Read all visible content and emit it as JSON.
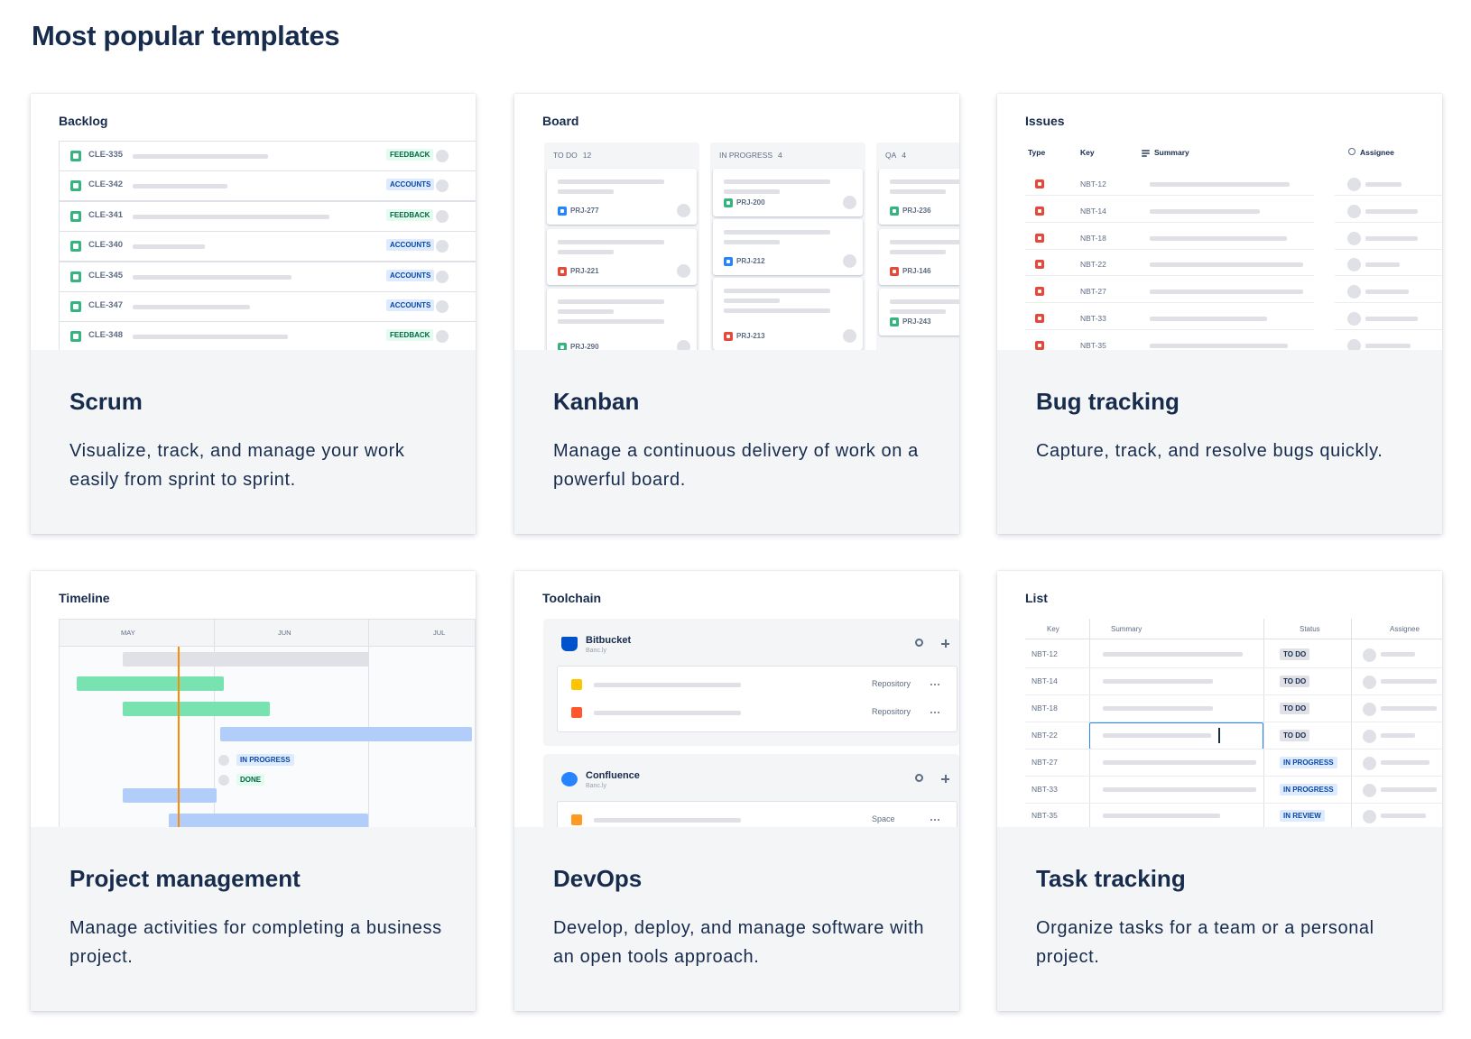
{
  "title": "Most popular templates",
  "templates": [
    {
      "name": "Scrum",
      "description": "Visualize, track, and manage your work easily from sprint to sprint.",
      "preview": {
        "heading": "Backlog",
        "rows": [
          {
            "key": "CLE-335",
            "label": "FEEDBACK"
          },
          {
            "key": "CLE-342",
            "label": "ACCOUNTS"
          },
          {
            "key": "CLE-341",
            "label": "FEEDBACK"
          },
          {
            "key": "CLE-340",
            "label": "ACCOUNTS"
          },
          {
            "key": "CLE-345",
            "label": "ACCOUNTS"
          },
          {
            "key": "CLE-347",
            "label": "ACCOUNTS"
          },
          {
            "key": "CLE-348",
            "label": "FEEDBACK"
          }
        ]
      }
    },
    {
      "name": "Kanban",
      "description": "Manage a continuous delivery of work on a powerful board.",
      "preview": {
        "heading": "Board",
        "columns": [
          {
            "name": "TO DO",
            "count": 12,
            "cards": [
              "PRJ-277",
              "PRJ-221",
              "PRJ-290"
            ]
          },
          {
            "name": "IN PROGRESS",
            "count": 4,
            "cards": [
              "PRJ-200",
              "PRJ-212",
              "PRJ-213"
            ]
          },
          {
            "name": "QA",
            "count": 4,
            "cards": [
              "PRJ-236",
              "PRJ-146",
              "PRJ-243"
            ]
          }
        ]
      }
    },
    {
      "name": "Bug tracking",
      "description": "Capture, track, and resolve bugs quickly.",
      "preview": {
        "heading": "Issues",
        "columns": [
          "Type",
          "Key",
          "Summary",
          "Assignee"
        ],
        "keys": [
          "NBT-12",
          "NBT-14",
          "NBT-18",
          "NBT-22",
          "NBT-27",
          "NBT-33",
          "NBT-35"
        ]
      }
    },
    {
      "name": "Project management",
      "description": "Manage activities for completing a business project.",
      "preview": {
        "heading": "Timeline",
        "months": [
          "MAY",
          "JUN",
          "JUL"
        ],
        "statuses": [
          "IN PROGRESS",
          "DONE"
        ]
      }
    },
    {
      "name": "DevOps",
      "description": "Develop, deploy, and manage software with an open tools approach.",
      "preview": {
        "heading": "Toolchain",
        "tools": [
          {
            "name": "Bitbucket",
            "site": "Banc.ly",
            "items": [
              "Repository",
              "Repository"
            ]
          },
          {
            "name": "Confluence",
            "site": "Banc.ly",
            "items": [
              "Space"
            ]
          }
        ]
      }
    },
    {
      "name": "Task tracking",
      "description": "Organize tasks for a team or a personal project.",
      "preview": {
        "heading": "List",
        "columns": [
          "Key",
          "Summary",
          "Status",
          "Assignee"
        ],
        "rows": [
          {
            "key": "NBT-12",
            "status": "TO DO"
          },
          {
            "key": "NBT-14",
            "status": "TO DO"
          },
          {
            "key": "NBT-18",
            "status": "TO DO"
          },
          {
            "key": "NBT-22",
            "status": "TO DO"
          },
          {
            "key": "NBT-27",
            "status": "IN PROGRESS"
          },
          {
            "key": "NBT-33",
            "status": "IN PROGRESS"
          },
          {
            "key": "NBT-35",
            "status": "IN REVIEW"
          }
        ]
      }
    }
  ]
}
